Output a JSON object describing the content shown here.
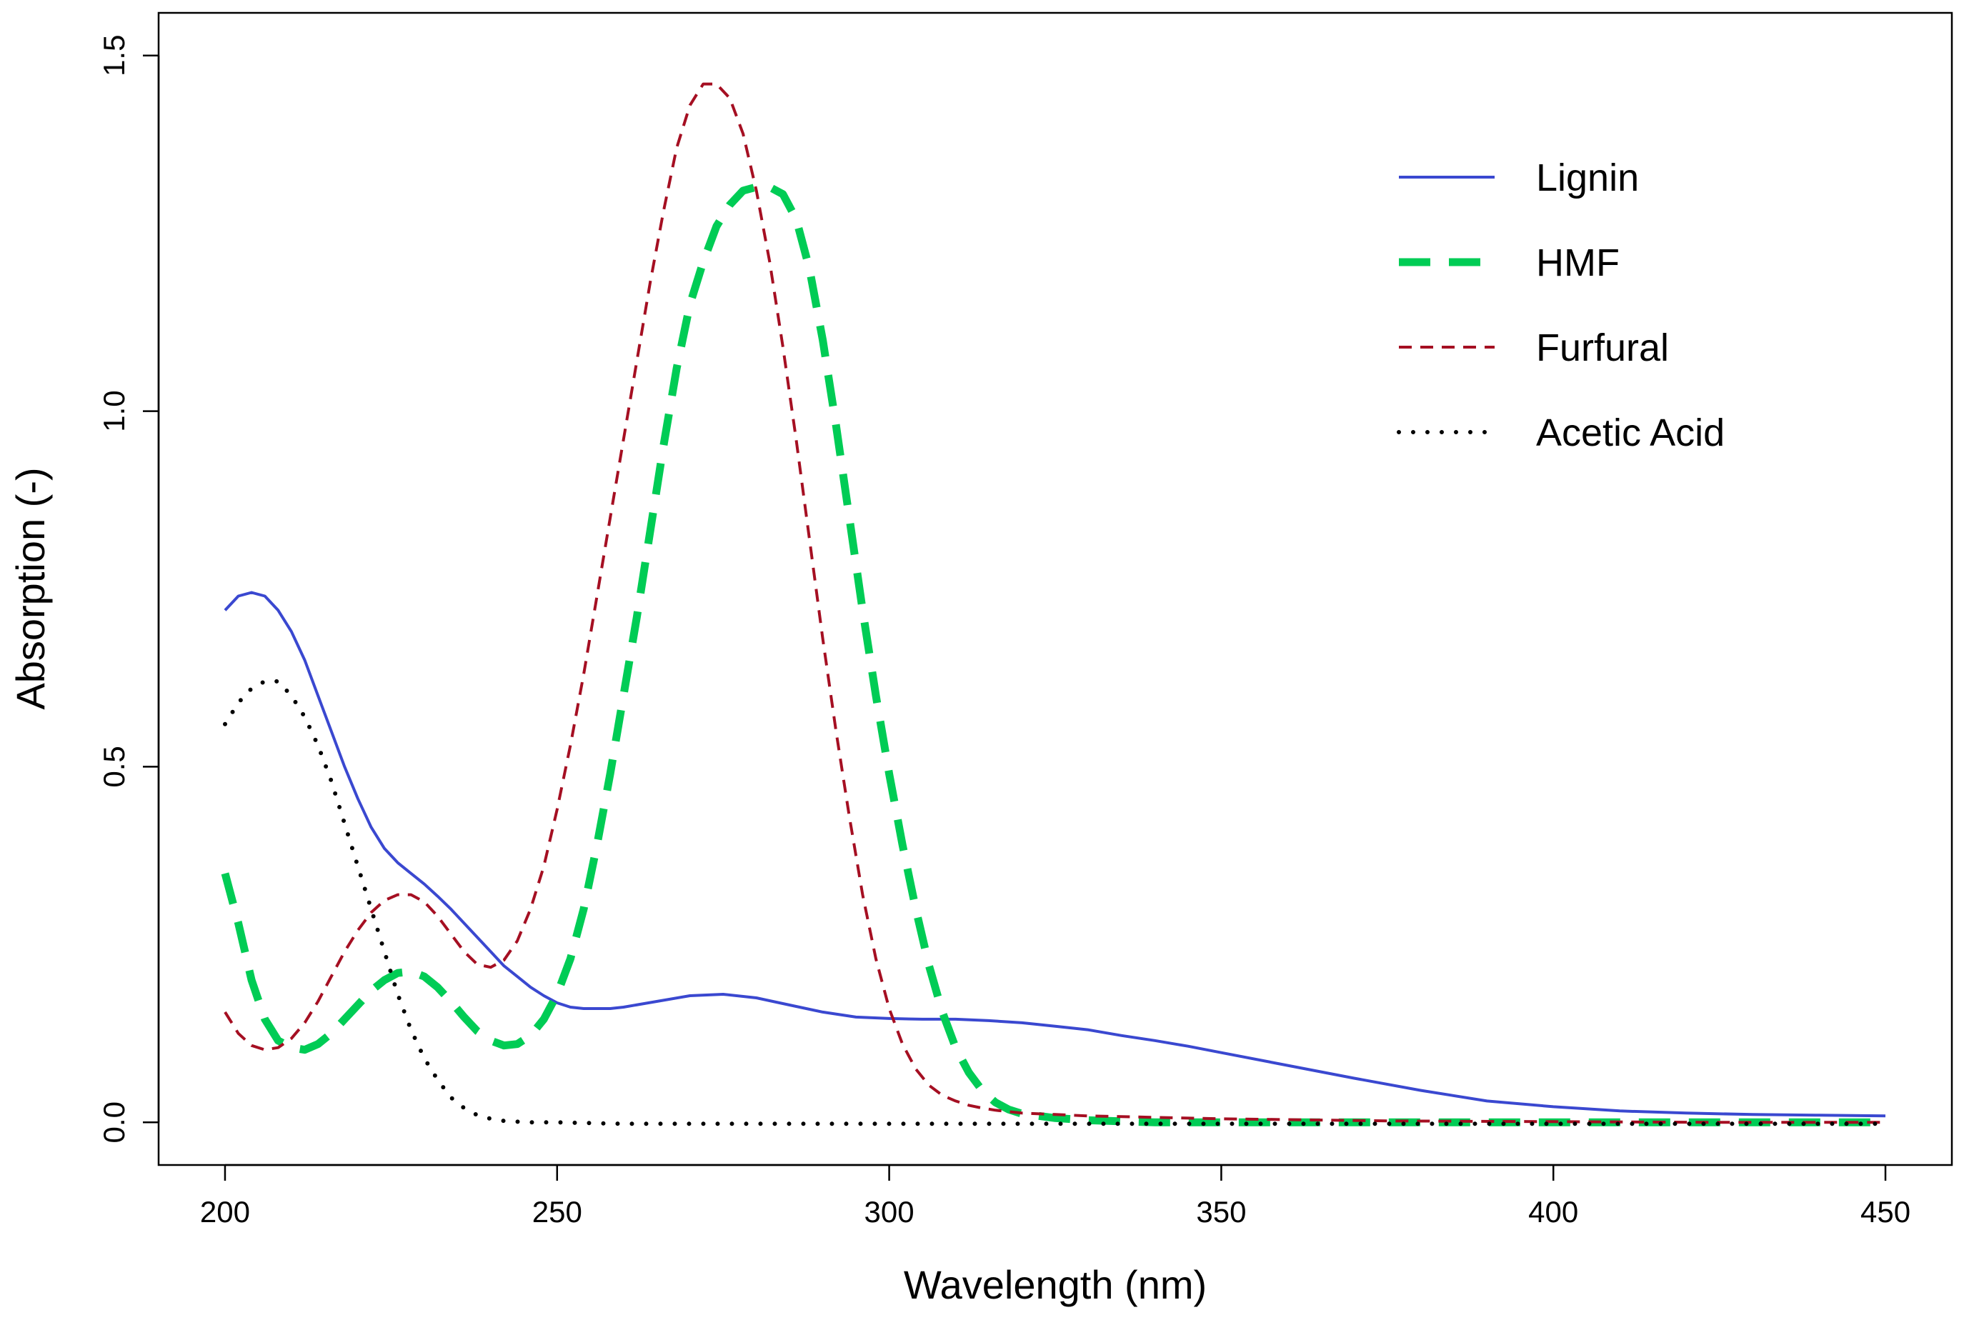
{
  "chart_data": {
    "type": "line",
    "title": "",
    "xlabel": "Wavelength (nm)",
    "ylabel": "Absorption (-)",
    "xlim": [
      190,
      460
    ],
    "ylim": [
      -0.06,
      1.56
    ],
    "xticks": [
      200,
      250,
      300,
      350,
      400,
      450
    ],
    "yticks": [
      0.0,
      0.5,
      1.0,
      1.5
    ],
    "xtick_labels": [
      "200",
      "250",
      "300",
      "350",
      "400",
      "450"
    ],
    "ytick_labels": [
      "0.0",
      "0.5",
      "1.0",
      "1.5"
    ],
    "legend_position": "top-right",
    "series": [
      {
        "name": "Lignin",
        "color": "#3a48d0",
        "style": "solid",
        "x": [
          200,
          202,
          204,
          206,
          208,
          210,
          212,
          214,
          216,
          218,
          220,
          222,
          224,
          226,
          228,
          230,
          232,
          234,
          236,
          238,
          240,
          242,
          244,
          246,
          248,
          250,
          252,
          254,
          256,
          258,
          260,
          265,
          270,
          275,
          280,
          285,
          290,
          295,
          300,
          305,
          310,
          315,
          320,
          325,
          330,
          335,
          340,
          345,
          350,
          360,
          370,
          380,
          390,
          400,
          410,
          420,
          430,
          440,
          450
        ],
        "values": [
          0.72,
          0.74,
          0.745,
          0.74,
          0.72,
          0.69,
          0.65,
          0.6,
          0.55,
          0.5,
          0.455,
          0.415,
          0.385,
          0.365,
          0.35,
          0.335,
          0.318,
          0.3,
          0.28,
          0.26,
          0.24,
          0.22,
          0.205,
          0.19,
          0.178,
          0.168,
          0.162,
          0.16,
          0.16,
          0.16,
          0.162,
          0.17,
          0.178,
          0.18,
          0.175,
          0.165,
          0.155,
          0.148,
          0.146,
          0.145,
          0.145,
          0.143,
          0.14,
          0.135,
          0.13,
          0.122,
          0.115,
          0.107,
          0.098,
          0.08,
          0.062,
          0.045,
          0.03,
          0.022,
          0.016,
          0.013,
          0.011,
          0.01,
          0.009
        ]
      },
      {
        "name": "HMF",
        "color": "#00cc55",
        "style": "dashed-thick",
        "x": [
          200,
          202,
          204,
          206,
          208,
          210,
          212,
          214,
          216,
          218,
          220,
          222,
          224,
          226,
          228,
          230,
          232,
          234,
          236,
          238,
          240,
          242,
          244,
          246,
          248,
          250,
          252,
          254,
          256,
          258,
          260,
          262,
          264,
          266,
          268,
          270,
          272,
          274,
          276,
          278,
          280,
          282,
          284,
          286,
          288,
          290,
          292,
          294,
          296,
          298,
          300,
          302,
          304,
          306,
          308,
          310,
          312,
          314,
          316,
          318,
          320,
          325,
          330,
          340,
          350,
          375,
          400,
          425,
          450
        ],
        "values": [
          0.35,
          0.28,
          0.2,
          0.145,
          0.115,
          0.105,
          0.102,
          0.11,
          0.125,
          0.145,
          0.165,
          0.185,
          0.2,
          0.21,
          0.212,
          0.205,
          0.19,
          0.17,
          0.148,
          0.128,
          0.115,
          0.108,
          0.11,
          0.122,
          0.145,
          0.18,
          0.23,
          0.3,
          0.39,
          0.49,
          0.6,
          0.71,
          0.83,
          0.95,
          1.06,
          1.15,
          1.21,
          1.26,
          1.29,
          1.31,
          1.315,
          1.315,
          1.305,
          1.27,
          1.2,
          1.1,
          0.98,
          0.85,
          0.72,
          0.6,
          0.49,
          0.39,
          0.3,
          0.22,
          0.155,
          0.105,
          0.07,
          0.045,
          0.028,
          0.018,
          0.012,
          0.006,
          0.003,
          0.0,
          0.0,
          0.0,
          0.0,
          0.0,
          0.0
        ]
      },
      {
        "name": "Furfural",
        "color": "#a50f22",
        "style": "dashed-thin",
        "x": [
          200,
          202,
          204,
          206,
          208,
          210,
          212,
          214,
          216,
          218,
          220,
          222,
          224,
          226,
          228,
          230,
          232,
          234,
          236,
          238,
          240,
          242,
          244,
          246,
          248,
          250,
          252,
          254,
          256,
          258,
          260,
          262,
          264,
          266,
          268,
          270,
          272,
          274,
          276,
          278,
          280,
          282,
          284,
          286,
          288,
          290,
          292,
          294,
          296,
          298,
          300,
          302,
          304,
          306,
          308,
          310,
          312,
          314,
          316,
          318,
          320,
          325,
          330,
          340,
          350,
          375,
          400,
          425,
          450
        ],
        "values": [
          0.155,
          0.125,
          0.108,
          0.102,
          0.105,
          0.118,
          0.14,
          0.17,
          0.205,
          0.24,
          0.27,
          0.295,
          0.312,
          0.32,
          0.32,
          0.31,
          0.29,
          0.265,
          0.24,
          0.222,
          0.218,
          0.228,
          0.255,
          0.3,
          0.36,
          0.44,
          0.53,
          0.63,
          0.74,
          0.85,
          0.96,
          1.07,
          1.18,
          1.28,
          1.37,
          1.43,
          1.46,
          1.46,
          1.44,
          1.39,
          1.31,
          1.21,
          1.09,
          0.96,
          0.82,
          0.68,
          0.55,
          0.43,
          0.32,
          0.23,
          0.16,
          0.11,
          0.075,
          0.052,
          0.038,
          0.03,
          0.024,
          0.02,
          0.017,
          0.015,
          0.013,
          0.011,
          0.009,
          0.007,
          0.005,
          0.002,
          0.001,
          0.0,
          0.0
        ]
      },
      {
        "name": "Acetic Acid",
        "color": "#000000",
        "style": "dotted",
        "x": [
          200,
          202,
          204,
          206,
          208,
          210,
          212,
          214,
          216,
          218,
          220,
          222,
          224,
          226,
          228,
          230,
          232,
          234,
          236,
          238,
          240,
          242,
          244,
          246,
          248,
          250,
          260,
          280,
          300,
          350,
          400,
          450
        ],
        "values": [
          0.56,
          0.59,
          0.61,
          0.62,
          0.62,
          0.6,
          0.57,
          0.53,
          0.48,
          0.42,
          0.36,
          0.3,
          0.24,
          0.18,
          0.13,
          0.09,
          0.06,
          0.035,
          0.02,
          0.01,
          0.005,
          0.002,
          0.001,
          0.0,
          0.0,
          0.0,
          -0.002,
          -0.002,
          -0.002,
          -0.002,
          -0.002,
          -0.002
        ]
      }
    ]
  }
}
